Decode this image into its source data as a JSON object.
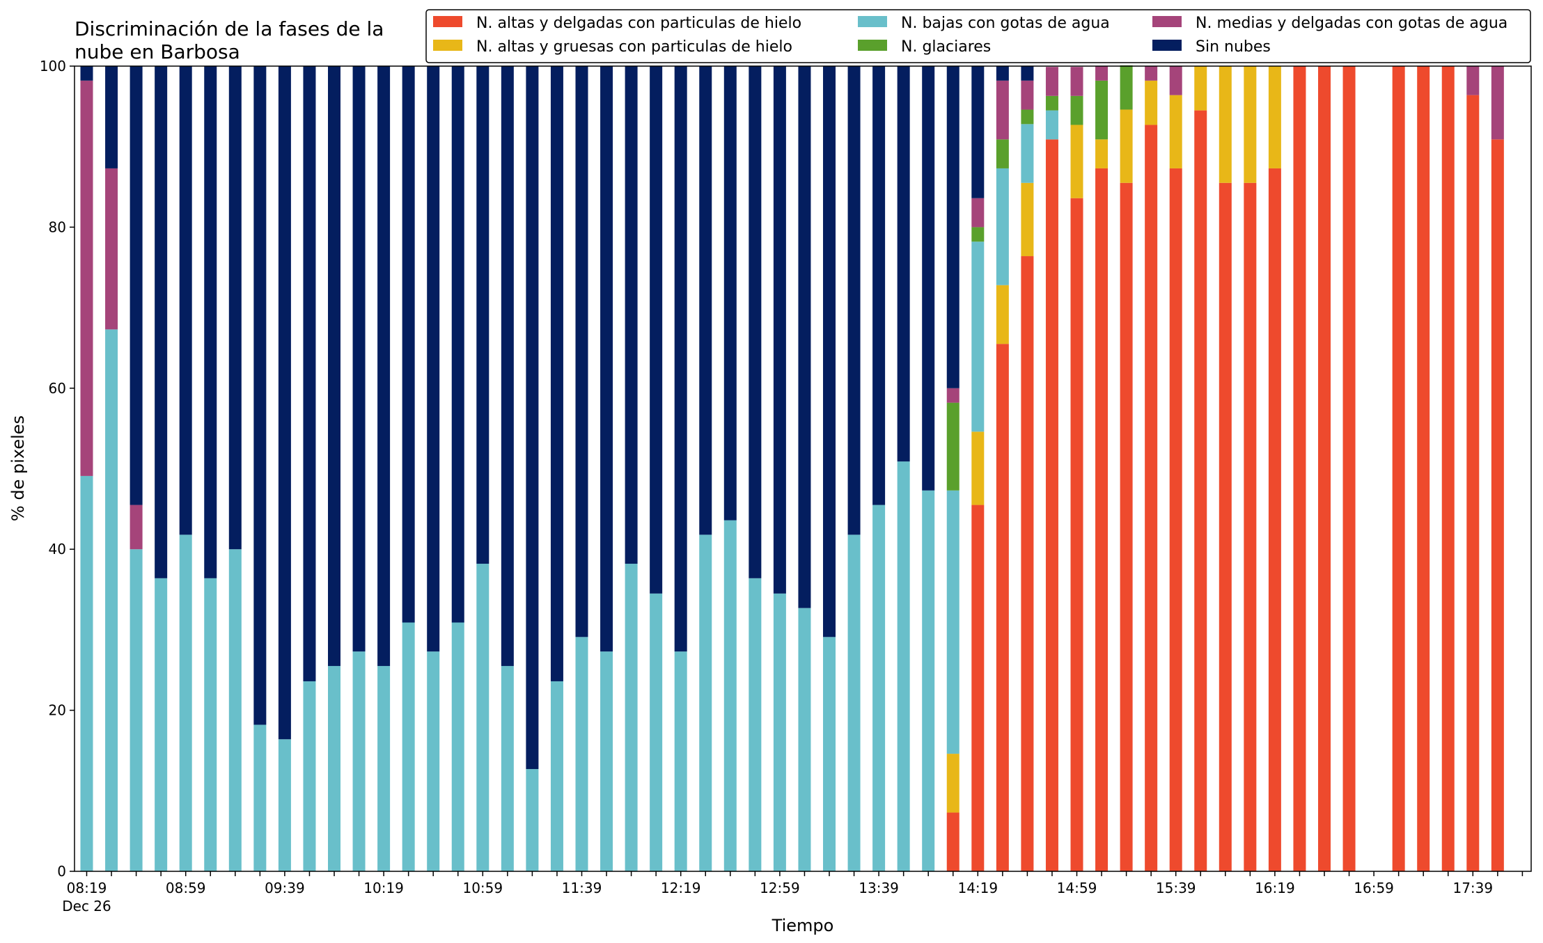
{
  "chart_data": {
    "type": "bar",
    "stacked": true,
    "title_lines": [
      "Discriminación de la fases de la",
      "nube en Barbosa"
    ],
    "xlabel": "Tiempo",
    "ylabel": "% de pixeles",
    "ylim": [
      0,
      100
    ],
    "yticks": [
      "0",
      "20",
      "40",
      "60",
      "80",
      "100"
    ],
    "grid": false,
    "legend_placement": "top-right",
    "date_label": "Dec 26",
    "x_tick_labels": [
      "08:19",
      "",
      "",
      "",
      "08:59",
      "",
      "",
      "",
      "09:39",
      "",
      "",
      "",
      "10:19",
      "",
      "",
      "",
      "10:59",
      "",
      "",
      "",
      "11:39",
      "",
      "",
      "",
      "12:19",
      "",
      "",
      "",
      "12:59",
      "",
      "",
      "",
      "13:39",
      "",
      "",
      "",
      "14:19",
      "",
      "",
      "",
      "14:59",
      "",
      "",
      "",
      "15:39",
      "",
      "",
      "",
      "16:19",
      "",
      "",
      "",
      "16:59",
      "",
      "",
      "",
      "17:39",
      ""
    ],
    "series": [
      {
        "name": "N. altas y delgadas con particulas de hielo",
        "color": "#ee4a2d",
        "values": [
          0,
          0,
          0,
          0,
          0,
          0,
          0,
          0,
          0,
          0,
          0,
          0,
          0,
          0,
          0,
          0,
          0,
          0,
          0,
          0,
          0,
          0,
          0,
          0,
          0,
          0,
          0,
          0,
          0,
          0,
          0,
          0,
          0,
          0,
          0,
          7.3,
          45.5,
          65.5,
          76.4,
          90.9,
          83.6,
          87.3,
          85.5,
          92.7,
          87.3,
          94.5,
          85.5,
          85.5,
          87.3,
          100,
          100,
          100,
          null,
          100,
          100,
          100,
          96.4,
          90.9
        ]
      },
      {
        "name": "N. altas y gruesas con particulas de hielo",
        "color": "#e8b718",
        "values": [
          0,
          0,
          0,
          0,
          0,
          0,
          0,
          0,
          0,
          0,
          0,
          0,
          0,
          0,
          0,
          0,
          0,
          0,
          0,
          0,
          0,
          0,
          0,
          0,
          0,
          0,
          0,
          0,
          0,
          0,
          0,
          0,
          0,
          0,
          0,
          7.3,
          9.1,
          7.3,
          9.1,
          0,
          9.1,
          3.6,
          9.1,
          5.5,
          9.1,
          5.5,
          14.5,
          14.5,
          12.7,
          0,
          0,
          0,
          null,
          0,
          0,
          0,
          0,
          0
        ]
      },
      {
        "name": "N. bajas con gotas de agua",
        "color": "#69bfca",
        "values": [
          49.1,
          67.3,
          40,
          36.4,
          41.8,
          36.4,
          40,
          18.2,
          16.4,
          23.6,
          25.5,
          27.3,
          25.5,
          30.9,
          27.3,
          30.9,
          38.2,
          25.5,
          12.7,
          23.6,
          29.1,
          27.3,
          38.2,
          34.5,
          27.3,
          41.8,
          43.6,
          36.4,
          34.5,
          32.7,
          29.1,
          41.8,
          45.5,
          50.9,
          47.3,
          32.7,
          23.6,
          14.5,
          7.3,
          3.6,
          0,
          0,
          0,
          0,
          0,
          0,
          0,
          0,
          0,
          0,
          0,
          0,
          null,
          0,
          0,
          0,
          0,
          0
        ]
      },
      {
        "name": "N. glaciares",
        "color": "#5aa02c",
        "values": [
          0,
          0,
          0,
          0,
          0,
          0,
          0,
          0,
          0,
          0,
          0,
          0,
          0,
          0,
          0,
          0,
          0,
          0,
          0,
          0,
          0,
          0,
          0,
          0,
          0,
          0,
          0,
          0,
          0,
          0,
          0,
          0,
          0,
          0,
          0,
          10.9,
          1.8,
          3.6,
          1.8,
          1.8,
          3.6,
          7.3,
          5.5,
          0,
          0,
          0,
          0,
          0,
          0,
          0,
          0,
          0,
          null,
          0,
          0,
          0,
          0,
          0
        ]
      },
      {
        "name": "N. medias y delgadas con gotas de agua",
        "color": "#a5447a",
        "values": [
          49.1,
          20,
          5.5,
          0,
          0,
          0,
          0,
          0,
          0,
          0,
          0,
          0,
          0,
          0,
          0,
          0,
          0,
          0,
          0,
          0,
          0,
          0,
          0,
          0,
          0,
          0,
          0,
          0,
          0,
          0,
          0,
          0,
          0,
          0,
          0,
          1.8,
          3.6,
          7.3,
          3.6,
          3.6,
          3.6,
          1.8,
          0,
          1.8,
          3.6,
          0,
          0,
          0,
          0,
          0,
          0,
          0,
          null,
          0,
          0,
          0,
          3.6,
          9.1
        ]
      },
      {
        "name": "Sin nubes",
        "color": "#041e5f",
        "values": [
          1.8,
          12.7,
          54.5,
          63.6,
          58.2,
          63.6,
          60,
          81.8,
          83.6,
          76.4,
          74.5,
          72.7,
          74.5,
          69.1,
          72.7,
          69.1,
          61.8,
          74.5,
          87.3,
          76.4,
          70.9,
          72.7,
          61.8,
          65.5,
          72.7,
          58.2,
          56.4,
          63.6,
          65.5,
          67.3,
          70.9,
          58.2,
          54.5,
          49.1,
          52.7,
          40,
          16.4,
          1.8,
          1.8,
          0,
          0,
          0,
          0,
          0,
          0,
          0,
          0,
          0,
          0,
          0,
          0,
          0,
          null,
          0,
          0,
          0,
          0,
          0
        ]
      }
    ]
  }
}
